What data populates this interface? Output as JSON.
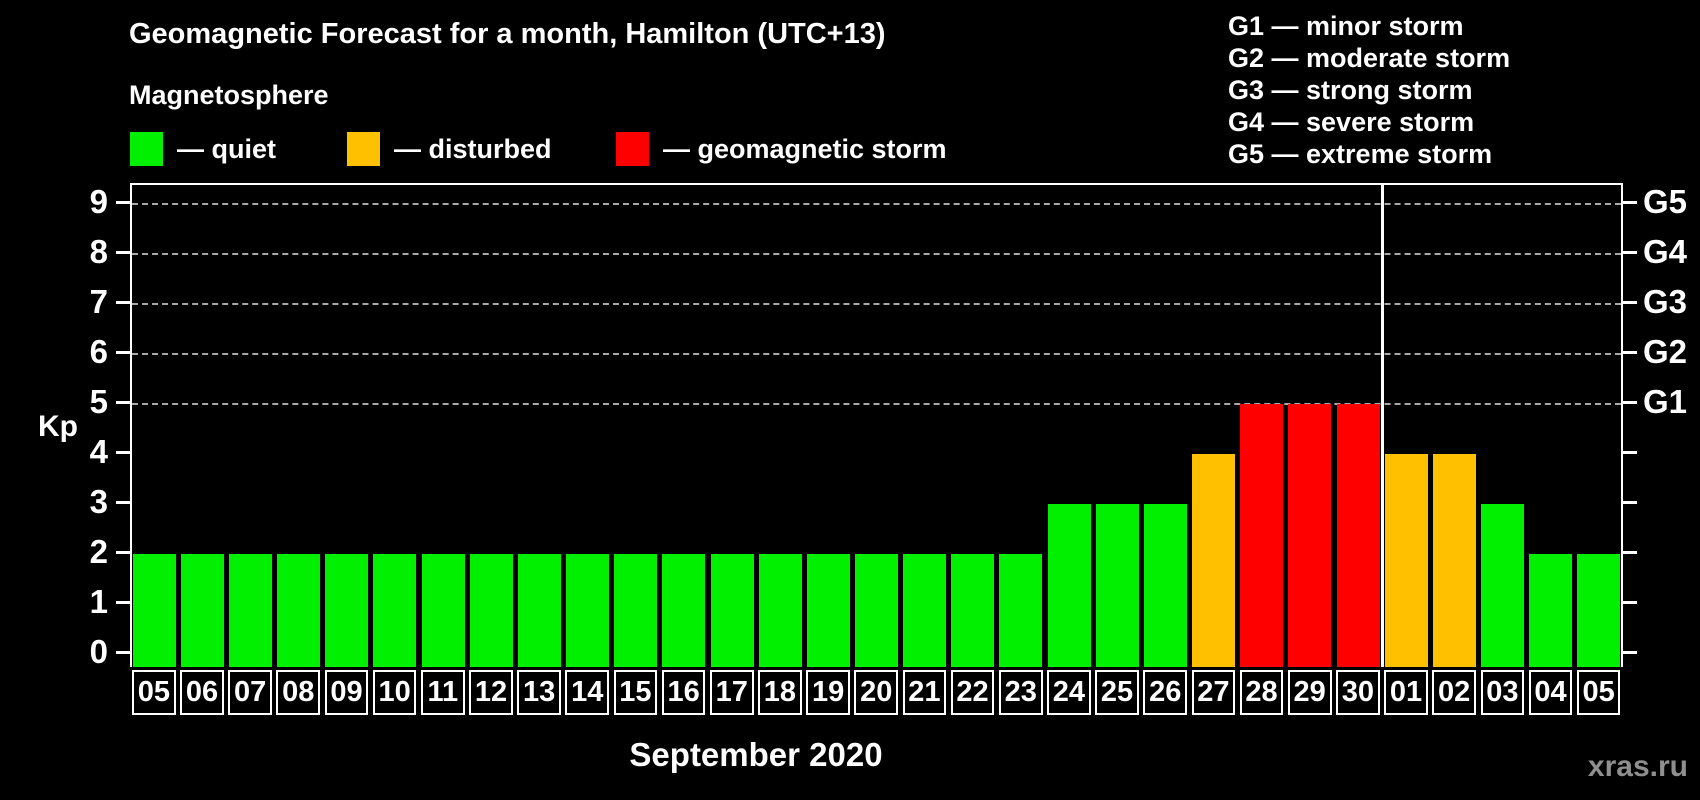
{
  "header": {
    "title": "Geomagnetic Forecast for a month, Hamilton (UTC+13)",
    "subtitle": "Magnetosphere",
    "legend": [
      {
        "status": "quiet",
        "label": "— quiet"
      },
      {
        "status": "disturbed",
        "label": "— disturbed"
      },
      {
        "status": "storm",
        "label": "— geomagnetic storm"
      }
    ],
    "g_legend": [
      {
        "label": "G1 — minor storm"
      },
      {
        "label": "G2 — moderate storm"
      },
      {
        "label": "G3 — strong storm"
      },
      {
        "label": "G4 — severe storm"
      },
      {
        "label": "G5 — extreme storm"
      }
    ]
  },
  "colors": {
    "quiet": "#00f000",
    "disturbed": "#ffc000",
    "storm": "#ff0000",
    "frame": "#ffffff",
    "grid": "#a8a8a8",
    "watermark": "#8f8f8f"
  },
  "chart_data": {
    "type": "bar",
    "title": "Geomagnetic Forecast for a month, Hamilton (UTC+13)",
    "xlabel": "September 2020",
    "ylabel": "Kp",
    "ylim": [
      -0.3,
      9.4
    ],
    "yticks": [
      0,
      1,
      2,
      3,
      4,
      5,
      6,
      7,
      8,
      9
    ],
    "gridlines_at": [
      5,
      6,
      7,
      8,
      9
    ],
    "grid": "dashed-horizontal",
    "legend_position": "top-left",
    "right_axis_labels": [
      {
        "label": "G1",
        "kp": 5
      },
      {
        "label": "G2",
        "kp": 6
      },
      {
        "label": "G3",
        "kp": 7
      },
      {
        "label": "G4",
        "kp": 8
      },
      {
        "label": "G5",
        "kp": 9
      }
    ],
    "month_boundary_index": 26,
    "series": [
      {
        "date": "05",
        "kp": 2,
        "status": "quiet"
      },
      {
        "date": "06",
        "kp": 2,
        "status": "quiet"
      },
      {
        "date": "07",
        "kp": 2,
        "status": "quiet"
      },
      {
        "date": "08",
        "kp": 2,
        "status": "quiet"
      },
      {
        "date": "09",
        "kp": 2,
        "status": "quiet"
      },
      {
        "date": "10",
        "kp": 2,
        "status": "quiet"
      },
      {
        "date": "11",
        "kp": 2,
        "status": "quiet"
      },
      {
        "date": "12",
        "kp": 2,
        "status": "quiet"
      },
      {
        "date": "13",
        "kp": 2,
        "status": "quiet"
      },
      {
        "date": "14",
        "kp": 2,
        "status": "quiet"
      },
      {
        "date": "15",
        "kp": 2,
        "status": "quiet"
      },
      {
        "date": "16",
        "kp": 2,
        "status": "quiet"
      },
      {
        "date": "17",
        "kp": 2,
        "status": "quiet"
      },
      {
        "date": "18",
        "kp": 2,
        "status": "quiet"
      },
      {
        "date": "19",
        "kp": 2,
        "status": "quiet"
      },
      {
        "date": "20",
        "kp": 2,
        "status": "quiet"
      },
      {
        "date": "21",
        "kp": 2,
        "status": "quiet"
      },
      {
        "date": "22",
        "kp": 2,
        "status": "quiet"
      },
      {
        "date": "23",
        "kp": 2,
        "status": "quiet"
      },
      {
        "date": "24",
        "kp": 3,
        "status": "quiet"
      },
      {
        "date": "25",
        "kp": 3,
        "status": "quiet"
      },
      {
        "date": "26",
        "kp": 3,
        "status": "quiet"
      },
      {
        "date": "27",
        "kp": 4,
        "status": "disturbed"
      },
      {
        "date": "28",
        "kp": 5,
        "status": "storm"
      },
      {
        "date": "29",
        "kp": 5,
        "status": "storm"
      },
      {
        "date": "30",
        "kp": 5,
        "status": "storm"
      },
      {
        "date": "01",
        "kp": 4,
        "status": "disturbed"
      },
      {
        "date": "02",
        "kp": 4,
        "status": "disturbed"
      },
      {
        "date": "03",
        "kp": 3,
        "status": "quiet"
      },
      {
        "date": "04",
        "kp": 2,
        "status": "quiet"
      },
      {
        "date": "05",
        "kp": 2,
        "status": "quiet"
      }
    ]
  },
  "footer": {
    "xaxis_title": "September 2020",
    "watermark": "xras.ru"
  }
}
